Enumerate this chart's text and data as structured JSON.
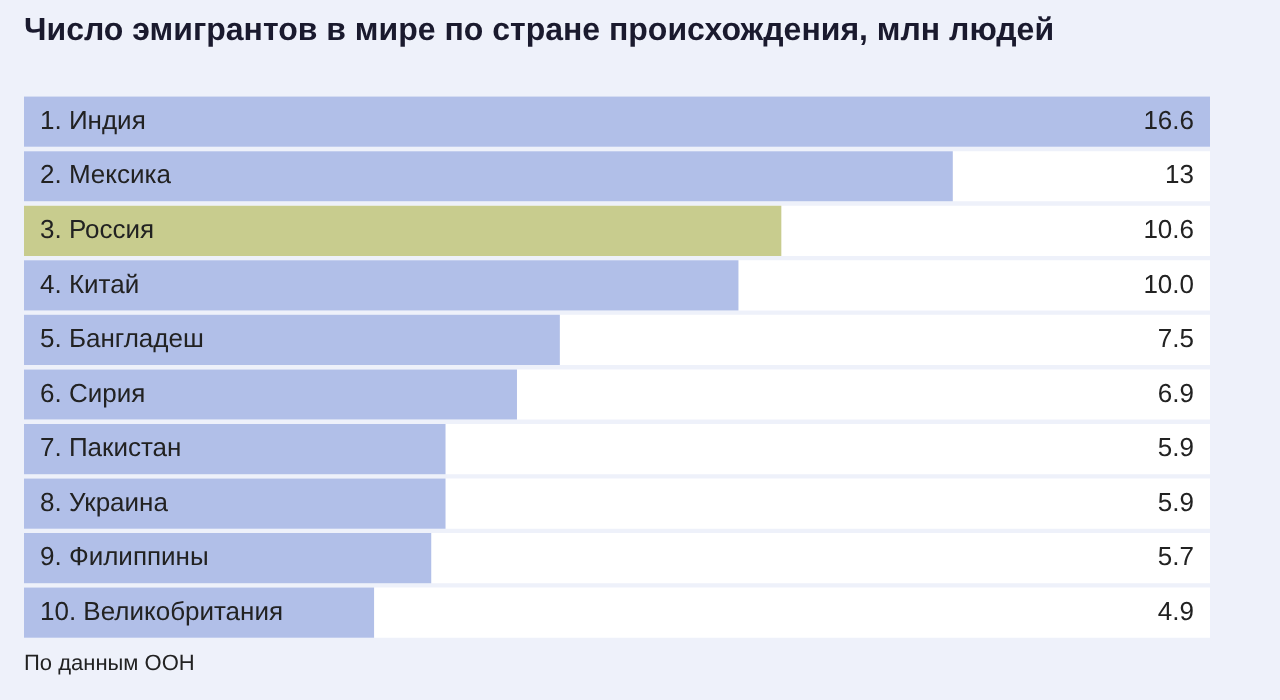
{
  "chart_data": {
    "type": "bar",
    "orientation": "horizontal",
    "title": "Число эмигрантов в мире по стране происхождения, млн людей",
    "categories": [
      "1. Индия",
      "2. Мексика",
      "3. Россия",
      "4. Китай",
      "5. Бангладеш",
      "6. Сирия",
      "7. Пакистан",
      "8. Украина",
      "9. Филиппины",
      "10. Великобритания"
    ],
    "values": [
      16.6,
      13,
      10.6,
      10.0,
      7.5,
      6.9,
      5.9,
      5.9,
      5.7,
      4.9
    ],
    "value_labels": [
      "16.6",
      "13",
      "10.6",
      "10.0",
      "7.5",
      "6.9",
      "5.9",
      "5.9",
      "5.7",
      "4.9"
    ],
    "colors": [
      "#b1bfe8",
      "#b1bfe8",
      "#c8cc8e",
      "#b1bfe8",
      "#b1bfe8",
      "#b1bfe8",
      "#b1bfe8",
      "#b1bfe8",
      "#b1bfe8",
      "#b1bfe8"
    ],
    "annotations": [
      "По данным ООН"
    ]
  }
}
